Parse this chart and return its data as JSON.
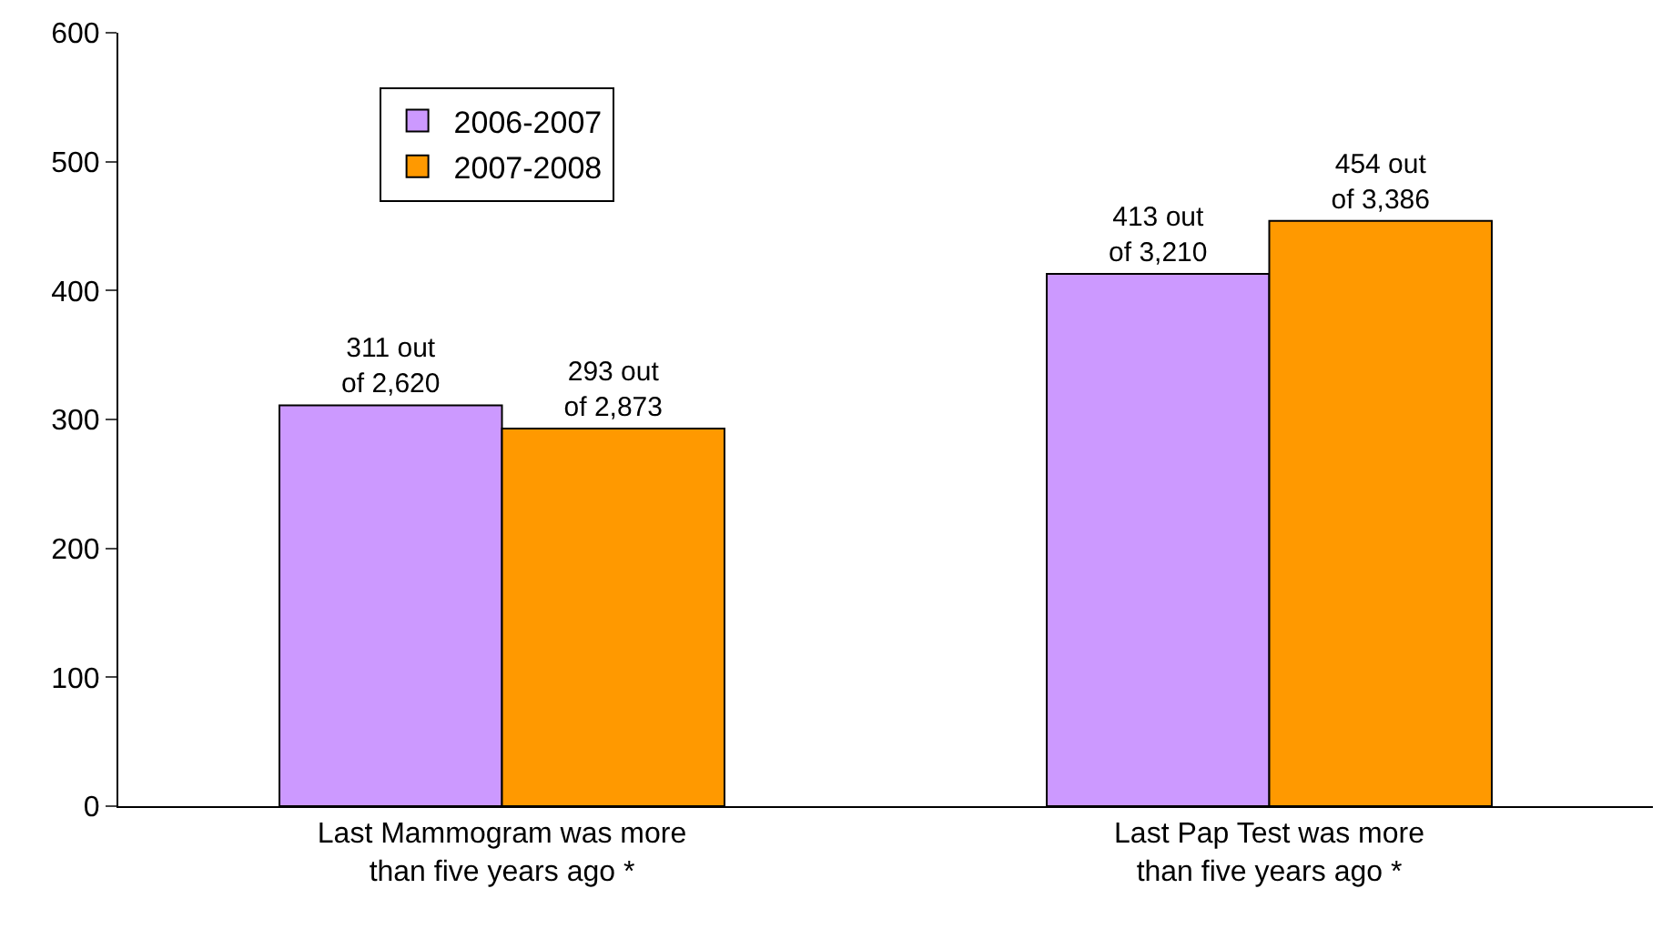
{
  "chart_data": {
    "type": "bar",
    "categories": [
      "Last Mammogram was more\nthan five years ago *",
      "Last Pap Test was more\nthan five years ago *"
    ],
    "series": [
      {
        "name": "2006-2007",
        "color": "#cc99ff",
        "values": [
          311,
          413
        ],
        "value_labels": [
          "311 out\nof 2,620",
          "413 out\nof 3,210"
        ]
      },
      {
        "name": "2007-2008",
        "color": "#ff9900",
        "values": [
          293,
          454
        ],
        "value_labels": [
          "293 out\nof 2,873",
          "454 out\nof 3,386"
        ]
      }
    ],
    "ylim": [
      0,
      600
    ],
    "yticks": [
      0,
      100,
      200,
      300,
      400,
      500,
      600
    ],
    "legend": "top left"
  }
}
